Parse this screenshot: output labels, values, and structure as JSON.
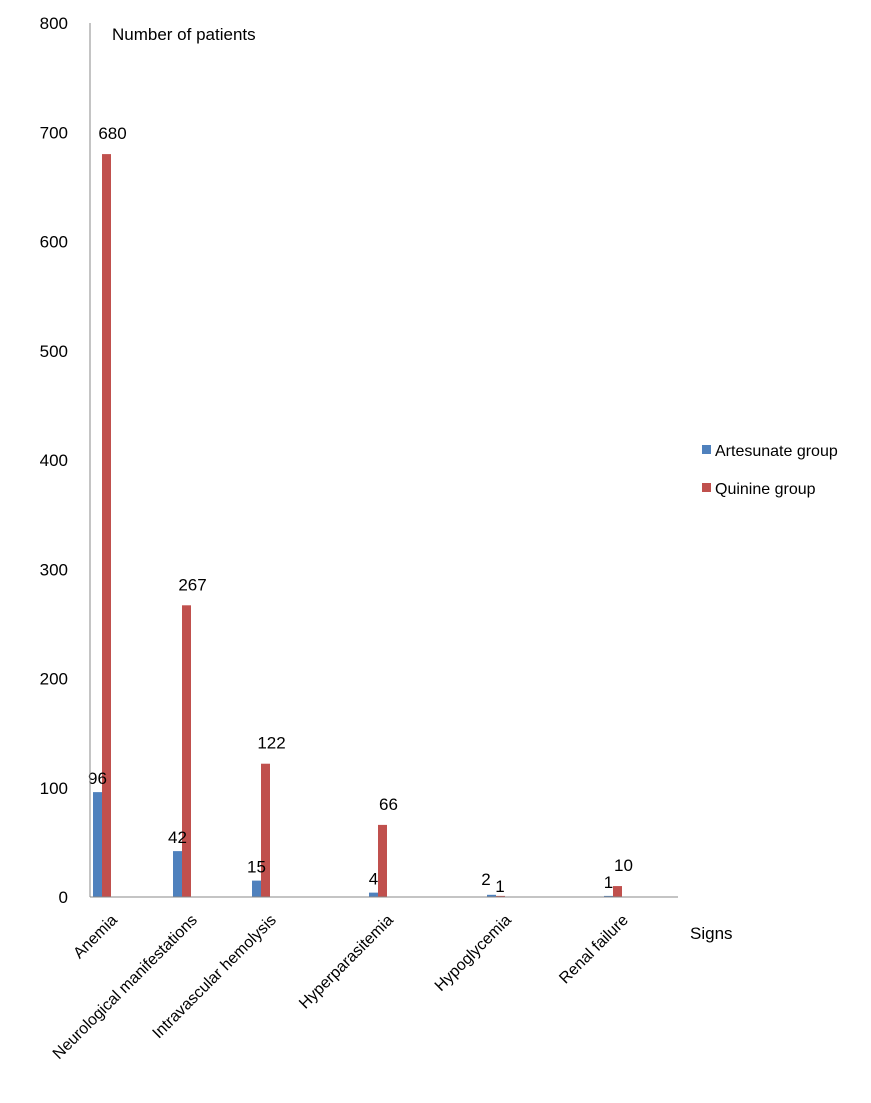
{
  "chart_data": {
    "type": "bar",
    "ylabel": "Number of patients",
    "xlabel": "Signs",
    "ylim": [
      0,
      800
    ],
    "yticks": [
      0,
      100,
      200,
      300,
      400,
      500,
      600,
      700,
      800
    ],
    "categories": [
      "Anemia",
      "Neurological manifestations",
      "Intravascular hemolysis",
      "Hyperparasitemia",
      "Hypoglycemia",
      "Renal failure"
    ],
    "series": [
      {
        "name": "Artesunate group",
        "color": "#4F81BD",
        "values": [
          96,
          42,
          15,
          4,
          2,
          1
        ]
      },
      {
        "name": "Quinine group",
        "color": "#C0504D",
        "values": [
          680,
          267,
          122,
          66,
          1,
          10
        ]
      }
    ],
    "legend_position": "right",
    "grid": false
  }
}
